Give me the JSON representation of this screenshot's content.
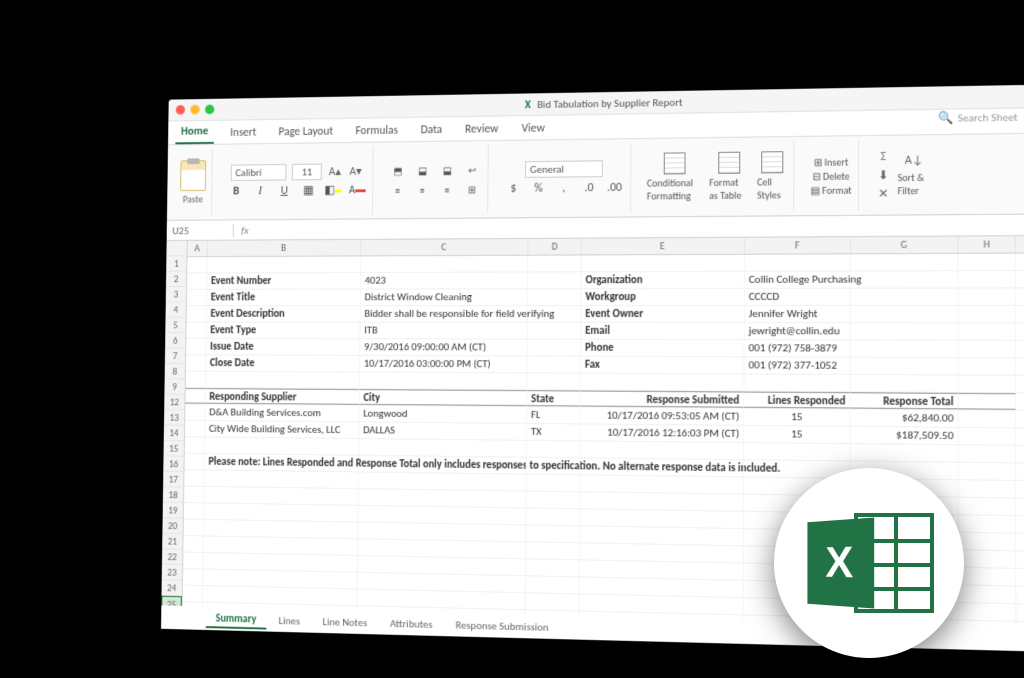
{
  "window": {
    "title": "Bid Tabulation by Supplier Report",
    "app_prefix": "X"
  },
  "ribbon": {
    "tabs": [
      "Home",
      "Insert",
      "Page Layout",
      "Formulas",
      "Data",
      "Review",
      "View"
    ],
    "active_tab": "Home",
    "search_placeholder": "Search Sheet",
    "paste_label": "Paste",
    "font_name": "Calibri",
    "font_size": "11",
    "number_format": "General",
    "groups": {
      "conditional": "Conditional Formatting",
      "format_table": "Format as Table",
      "cell_styles": "Cell Styles",
      "insert": "Insert",
      "delete": "Delete",
      "format": "Format",
      "sort_filter": "Sort & Filter"
    }
  },
  "namebox": {
    "cell": "U25",
    "fx": "fx"
  },
  "columns": [
    "A",
    "B",
    "C",
    "D",
    "E",
    "F",
    "G",
    "H"
  ],
  "row_count": 26,
  "selected_row": 25,
  "meta": {
    "labels": {
      "event_number": "Event Number",
      "event_title": "Event Title",
      "event_description": "Event Description",
      "event_type": "Event Type",
      "issue_date": "Issue Date",
      "close_date": "Close Date",
      "organization": "Organization",
      "workgroup": "Workgroup",
      "event_owner": "Event Owner",
      "email": "Email",
      "phone": "Phone",
      "fax": "Fax"
    },
    "values": {
      "event_number": "4023",
      "event_title": "District Window Cleaning",
      "event_description": "Bidder shall be responsible for field verifying",
      "event_type": "ITB",
      "issue_date": "9/30/2016 09:00:00 AM (CT)",
      "close_date": "10/17/2016 03:00:00 PM (CT)",
      "organization": "Collin College Purchasing",
      "workgroup": "CCCCD",
      "event_owner": "Jennifer Wright",
      "email": "jewright@collin.edu",
      "phone": "001 (972) 758-3879",
      "fax": "001 (972) 377-1052"
    }
  },
  "table": {
    "headers": {
      "supplier": "Responding Supplier",
      "city": "City",
      "state": "State",
      "submitted": "Response Submitted",
      "lines": "Lines Responded",
      "total": "Response Total"
    },
    "rows": [
      {
        "supplier": "D&A Building Services.com",
        "city": "Longwood",
        "state": "FL",
        "submitted": "10/17/2016 09:53:05 AM (CT)",
        "lines": "15",
        "total": "$62,840.00"
      },
      {
        "supplier": "City Wide Building Services, LLC",
        "city": "DALLAS",
        "state": "TX",
        "submitted": "10/17/2016 12:16:03 PM (CT)",
        "lines": "15",
        "total": "$187,509.50"
      }
    ]
  },
  "note": "Please note:  Lines Responded and Response Total only includes responses to specification.   No alternate response data is included.",
  "sheet_tabs": [
    "Summary",
    "Lines",
    "Line Notes",
    "Attributes",
    "Response Submission"
  ],
  "active_sheet": "Summary",
  "logo_letter": "X"
}
